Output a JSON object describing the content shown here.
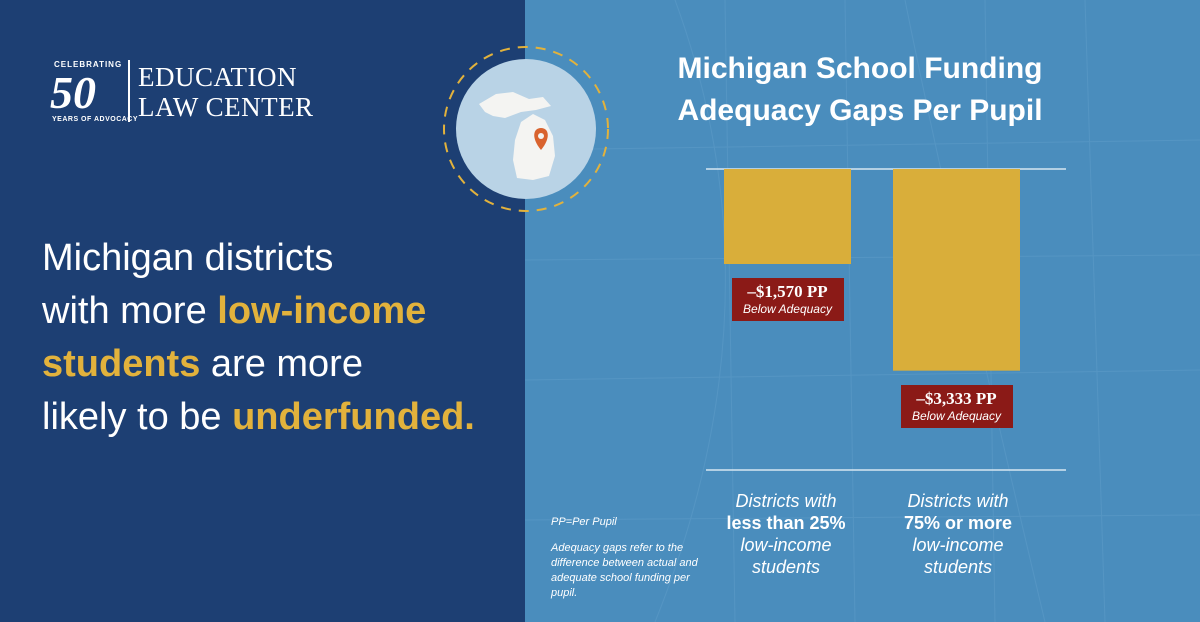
{
  "logo": {
    "celebrating": "CELEBRATING",
    "number": "50",
    "years": "YEARS OF ADVOCACY",
    "name_line1": "EDUCATION",
    "name_line2": "LAW CENTER"
  },
  "headline": {
    "p1": "Michigan districts",
    "p2": "with more ",
    "h1": "low-income",
    "h2": "students",
    "p3": " are more",
    "p4": "likely to be ",
    "h3": "underfunded."
  },
  "colors": {
    "left_bg": "#1d3f73",
    "right_bg": "#4a8dbd",
    "bar": "#d9ae3a",
    "label_bg": "#8b1a17",
    "accent": "#e2b23c"
  },
  "icons": {
    "badge": "michigan-map-pin-icon"
  },
  "chart_data": {
    "type": "bar",
    "title_line1": "Michigan School Funding",
    "title_line2": "Adequacy Gaps Per Pupil",
    "categories": [
      {
        "l1": "Districts with",
        "l2": "less than 25%",
        "l3": "low-income",
        "l4": "students"
      },
      {
        "l1": "Districts with",
        "l2": "75% or more",
        "l3": "low-income",
        "l4": "students"
      }
    ],
    "values": [
      -1570,
      -3333
    ],
    "labels": [
      "–$1,570 PP",
      "–$3,333 PP"
    ],
    "sublabel": "Below Adequacy",
    "ylim": [
      -4200,
      0
    ],
    "grid": false
  },
  "notes": {
    "pp": "PP=Per Pupil",
    "definition": "Adequacy gaps refer to the difference between actual and adequate school funding per pupil."
  }
}
